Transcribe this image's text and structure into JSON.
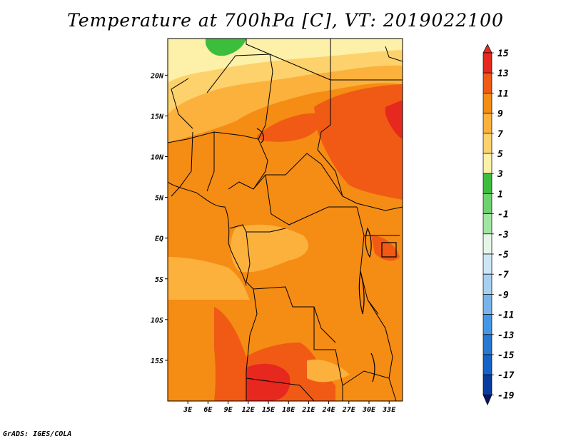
{
  "title": "Temperature at 700hPa [C], VT: 2019022100",
  "credit": "GrADS: IGES/COLA",
  "map": {
    "lat_labels": [
      {
        "label": "20N",
        "lat": 20
      },
      {
        "label": "15N",
        "lat": 15
      },
      {
        "label": "10N",
        "lat": 10
      },
      {
        "label": "5N",
        "lat": 5
      },
      {
        "label": "EQ",
        "lat": 0
      },
      {
        "label": "5S",
        "lat": -5
      },
      {
        "label": "10S",
        "lat": -10
      },
      {
        "label": "15S",
        "lat": -15
      }
    ],
    "lon_labels": [
      {
        "label": "3E",
        "lon": 3
      },
      {
        "label": "6E",
        "lon": 6
      },
      {
        "label": "9E",
        "lon": 9
      },
      {
        "label": "12E",
        "lon": 12
      },
      {
        "label": "15E",
        "lon": 15
      },
      {
        "label": "18E",
        "lon": 18
      },
      {
        "label": "21E",
        "lon": 21
      },
      {
        "label": "24E",
        "lon": 24
      },
      {
        "label": "27E",
        "lon": 27
      },
      {
        "label": "30E",
        "lon": 30
      },
      {
        "label": "33E",
        "lon": 33
      }
    ],
    "lon_range": [
      0,
      35
    ],
    "lat_range": [
      -20,
      24.5
    ]
  },
  "colorbar": {
    "levels": [
      "15",
      "13",
      "11",
      "9",
      "7",
      "5",
      "3",
      "1",
      "-1",
      "-3",
      "-5",
      "-7",
      "-9",
      "-11",
      "-13",
      "-15",
      "-17",
      "-19"
    ],
    "colors": [
      "#e6281e",
      "#f05a14",
      "#f58c14",
      "#fbb13c",
      "#fdd26c",
      "#fdf0a8",
      "#3cbe3c",
      "#6ed26e",
      "#a0e6a0",
      "#e6f6e6",
      "#cde6f5",
      "#a5d0f0",
      "#78b4eb",
      "#4696e6",
      "#2878d2",
      "#1464c8",
      "#0a3ca0",
      "#0a1464"
    ]
  }
}
